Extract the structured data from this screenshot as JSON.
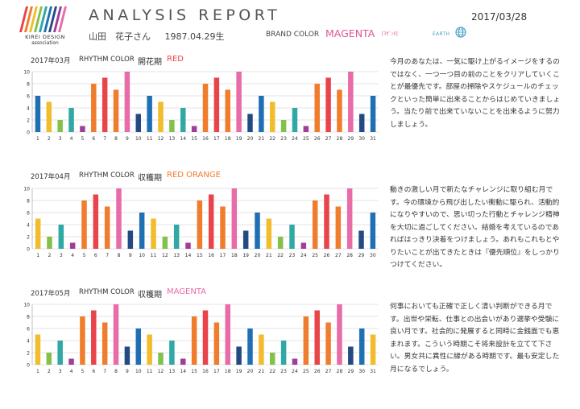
{
  "header": {
    "logo_text": "KIREI DESIGN",
    "logo_sub": "association",
    "report_title": "ANALYSIS REPORT",
    "person_name": "山田　花子さん",
    "birthdate": "1987.04.29生",
    "brand_color_label": "BRAND COLOR",
    "brand_color_value": "MAGENTA",
    "brand_color_sub": "[ﾏｾﾞﾝﾀ]",
    "earth_label": "EARTH",
    "earth_icon": "globe-icon",
    "date": "2017/03/28"
  },
  "colors": {
    "red": "#e8454b",
    "orange": "#ef7d2d",
    "yellow": "#f1bd2c",
    "green": "#84c14a",
    "teal": "#2fa8a6",
    "purple": "#a13d98",
    "pink": "#e86ca8",
    "navy": "#244a84",
    "blue": "#1f6fb4"
  },
  "sections": [
    {
      "month": "2017年03月",
      "rhythm_label": "RHYTHM COLOR",
      "period": "開花期",
      "color_name": "RED",
      "color_name_hex": "#e8454b",
      "description": "今月のあなたは、一気に駆け上がるイメージをするのではなく、一つ一つ目の前のことをクリアしていくことが最優先です。部屋の掃除やスケジュールのチェックといった簡単に出来ることからはじめていきましょう。当たり前で出来ていないことを出来るように努力しましょう。"
    },
    {
      "month": "2017年04月",
      "rhythm_label": "RHYTHM COLOR",
      "period": "収穫期",
      "color_name": "RED ORANGE",
      "color_name_hex": "#ef7d2d",
      "description": "動きの激しい月で新たなチャレンジに取り組む月です。今の環境から飛び出したい衝動に駆られ、活動的になりやすいので、思い切った行動とチャレンジ精神を大切に過ごしてください。結婚を考えているのであればはっきり決着をつけましょう。あれもこれもとやりたいことが出てきたときは『優先順位』をしっかりつけてください。"
    },
    {
      "month": "2017年05月",
      "rhythm_label": "RHYTHM COLOR",
      "period": "収穫期",
      "color_name": "MAGENTA",
      "color_name_hex": "#e86ca8",
      "description": "何事においても正確で正しく清い判断ができる月です。出世や栄転、仕事との出会いがあり選挙や受験に良い月です。社会的に発展すると同時に金銭面でも恵まれます。こういう時期こそ将来設計を立てて下さい。男女共に異性に縁がある時期です。最も安定した月になるでしょう。"
    }
  ],
  "chart_data": [
    {
      "type": "bar",
      "title": "2017年03月 RHYTHM COLOR 開花期 RED",
      "categories": [
        "1",
        "2",
        "3",
        "4",
        "5",
        "6",
        "7",
        "8",
        "9",
        "10",
        "11",
        "12",
        "13",
        "14",
        "15",
        "16",
        "17",
        "18",
        "19",
        "20",
        "21",
        "22",
        "23",
        "24",
        "25",
        "26",
        "27",
        "28",
        "29",
        "30",
        "31"
      ],
      "values": [
        6,
        5,
        2,
        4,
        1,
        8,
        9,
        7,
        10,
        3,
        6,
        5,
        2,
        4,
        1,
        8,
        9,
        7,
        10,
        3,
        6,
        5,
        2,
        4,
        1,
        8,
        9,
        7,
        10,
        3,
        6
      ],
      "bar_colors": [
        "#1f6fb4",
        "#f1bd2c",
        "#84c14a",
        "#2fa8a6",
        "#a13d98",
        "#ef7d2d",
        "#e8454b",
        "#ef7d2d",
        "#e86ca8",
        "#244a84",
        "#1f6fb4",
        "#f1bd2c",
        "#84c14a",
        "#2fa8a6",
        "#a13d98",
        "#ef7d2d",
        "#e8454b",
        "#ef7d2d",
        "#e86ca8",
        "#244a84",
        "#1f6fb4",
        "#f1bd2c",
        "#84c14a",
        "#2fa8a6",
        "#a13d98",
        "#ef7d2d",
        "#e8454b",
        "#ef7d2d",
        "#e86ca8",
        "#244a84",
        "#1f6fb4"
      ],
      "yticks": [
        0,
        2,
        4,
        6,
        8,
        10
      ],
      "ylim": [
        0,
        10
      ],
      "grid": true
    },
    {
      "type": "bar",
      "title": "2017年04月 RHYTHM COLOR 収穫期 RED ORANGE",
      "categories": [
        "1",
        "2",
        "3",
        "4",
        "5",
        "6",
        "7",
        "8",
        "9",
        "10",
        "11",
        "12",
        "13",
        "14",
        "15",
        "16",
        "17",
        "18",
        "19",
        "20",
        "21",
        "22",
        "23",
        "24",
        "25",
        "26",
        "27",
        "28",
        "29",
        "30"
      ],
      "values": [
        5,
        2,
        4,
        1,
        8,
        9,
        7,
        10,
        3,
        6,
        5,
        2,
        4,
        1,
        8,
        9,
        7,
        10,
        3,
        6,
        5,
        2,
        4,
        1,
        8,
        9,
        7,
        10,
        3,
        6
      ],
      "bar_colors": [
        "#f1bd2c",
        "#84c14a",
        "#2fa8a6",
        "#a13d98",
        "#ef7d2d",
        "#e8454b",
        "#ef7d2d",
        "#e86ca8",
        "#244a84",
        "#1f6fb4",
        "#f1bd2c",
        "#84c14a",
        "#2fa8a6",
        "#a13d98",
        "#ef7d2d",
        "#e8454b",
        "#ef7d2d",
        "#e86ca8",
        "#244a84",
        "#1f6fb4",
        "#f1bd2c",
        "#84c14a",
        "#2fa8a6",
        "#a13d98",
        "#ef7d2d",
        "#e8454b",
        "#ef7d2d",
        "#e86ca8",
        "#244a84",
        "#1f6fb4"
      ],
      "yticks": [
        0,
        2,
        4,
        6,
        8,
        10
      ],
      "ylim": [
        0,
        10
      ],
      "grid": true
    },
    {
      "type": "bar",
      "title": "2017年05月 RHYTHM COLOR 収穫期 MAGENTA",
      "categories": [
        "1",
        "2",
        "3",
        "4",
        "5",
        "6",
        "7",
        "8",
        "9",
        "10",
        "11",
        "12",
        "13",
        "14",
        "15",
        "16",
        "17",
        "18",
        "19",
        "20",
        "21",
        "22",
        "23",
        "24",
        "25",
        "26",
        "27",
        "28",
        "29",
        "30",
        "31"
      ],
      "values": [
        5,
        2,
        4,
        1,
        8,
        9,
        7,
        10,
        3,
        6,
        5,
        2,
        4,
        1,
        8,
        9,
        7,
        10,
        3,
        6,
        5,
        2,
        4,
        1,
        8,
        9,
        7,
        10,
        3,
        6,
        5
      ],
      "bar_colors": [
        "#f1bd2c",
        "#84c14a",
        "#2fa8a6",
        "#a13d98",
        "#ef7d2d",
        "#e8454b",
        "#ef7d2d",
        "#e86ca8",
        "#244a84",
        "#1f6fb4",
        "#f1bd2c",
        "#84c14a",
        "#2fa8a6",
        "#a13d98",
        "#ef7d2d",
        "#e8454b",
        "#ef7d2d",
        "#e86ca8",
        "#244a84",
        "#1f6fb4",
        "#f1bd2c",
        "#84c14a",
        "#2fa8a6",
        "#a13d98",
        "#ef7d2d",
        "#e8454b",
        "#ef7d2d",
        "#e86ca8",
        "#244a84",
        "#1f6fb4",
        "#f1bd2c"
      ],
      "yticks": [
        0,
        2,
        4,
        6,
        8,
        10
      ],
      "ylim": [
        0,
        10
      ],
      "grid": true
    }
  ]
}
